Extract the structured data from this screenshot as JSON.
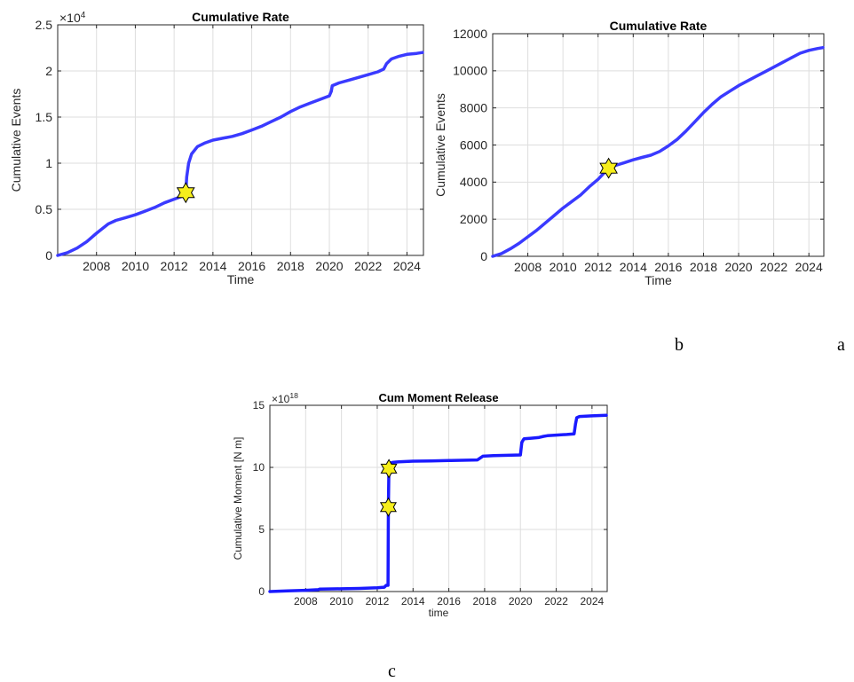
{
  "chart_data": [
    {
      "type": "line",
      "title": "Cumulative Rate",
      "xlabel": "Time",
      "ylabel": "Cumulative Events",
      "exponent_label": "×10^4",
      "exp_base": "×10",
      "exp_pow": "4",
      "xlim": [
        2006.0,
        2024.85
      ],
      "ylim": [
        0,
        2.5
      ],
      "x_ticks": [
        2008,
        2010,
        2012,
        2014,
        2016,
        2018,
        2020,
        2022,
        2024
      ],
      "x_tick_labels": [
        "2008",
        "2010",
        "2012",
        "2014",
        "2016",
        "2018",
        "2020",
        "2022",
        "2024"
      ],
      "y_ticks": [
        0,
        0.5,
        1,
        1.5,
        2,
        2.5
      ],
      "y_tick_labels": [
        "0",
        "0.5",
        "1",
        "1.5",
        "2",
        "2.5"
      ],
      "grid": true,
      "line_color": "#3a3aff",
      "series": [
        {
          "x": [
            2006.0,
            2006.5,
            2007.0,
            2007.5,
            2008.0,
            2008.6,
            2009.0,
            2009.5,
            2010.0,
            2010.5,
            2011.0,
            2011.5,
            2012.0,
            2012.4,
            2012.55,
            2012.6,
            2012.62,
            2012.65,
            2012.75,
            2012.9,
            2013.2,
            2013.6,
            2014.0,
            2014.5,
            2015.0,
            2015.5,
            2016.0,
            2016.5,
            2017.0,
            2017.5,
            2018.0,
            2018.5,
            2019.0,
            2019.5,
            2020.0,
            2020.1,
            2020.15,
            2020.5,
            2021.0,
            2021.5,
            2022.0,
            2022.5,
            2022.8,
            2022.95,
            2023.2,
            2023.6,
            2024.0,
            2024.5,
            2024.8
          ],
          "y": [
            0,
            0.03,
            0.08,
            0.15,
            0.24,
            0.34,
            0.38,
            0.41,
            0.44,
            0.48,
            0.52,
            0.57,
            0.61,
            0.64,
            0.66,
            0.68,
            0.75,
            0.85,
            1.0,
            1.1,
            1.18,
            1.22,
            1.25,
            1.27,
            1.29,
            1.32,
            1.36,
            1.4,
            1.45,
            1.5,
            1.56,
            1.61,
            1.65,
            1.69,
            1.73,
            1.78,
            1.84,
            1.87,
            1.9,
            1.93,
            1.96,
            1.99,
            2.02,
            2.08,
            2.13,
            2.16,
            2.18,
            2.19,
            2.2
          ]
        }
      ],
      "markers": [
        {
          "x": 2012.6,
          "y": 0.68
        }
      ]
    },
    {
      "type": "line",
      "title": "Cumulative Rate",
      "xlabel": "Time",
      "ylabel": "Cumulative Events",
      "xlim": [
        2006.0,
        2024.85
      ],
      "ylim": [
        0,
        12000
      ],
      "x_ticks": [
        2008,
        2010,
        2012,
        2014,
        2016,
        2018,
        2020,
        2022,
        2024
      ],
      "x_tick_labels": [
        "2008",
        "2010",
        "2012",
        "2014",
        "2016",
        "2018",
        "2020",
        "2022",
        "2024"
      ],
      "y_ticks": [
        0,
        2000,
        4000,
        6000,
        8000,
        10000,
        12000
      ],
      "y_tick_labels": [
        "0",
        "2000",
        "4000",
        "6000",
        "8000",
        "10000",
        "12000"
      ],
      "grid": true,
      "line_color": "#3a3aff",
      "series": [
        {
          "x": [
            2006.0,
            2006.5,
            2007.0,
            2007.5,
            2008.0,
            2008.5,
            2009.0,
            2009.5,
            2010.0,
            2010.5,
            2011.0,
            2011.5,
            2012.0,
            2012.6,
            2013.0,
            2013.5,
            2014.0,
            2014.5,
            2015.0,
            2015.5,
            2016.0,
            2016.5,
            2017.0,
            2017.5,
            2018.0,
            2018.5,
            2019.0,
            2019.5,
            2020.0,
            2020.5,
            2021.0,
            2021.5,
            2022.0,
            2022.5,
            2023.0,
            2023.5,
            2024.0,
            2024.5,
            2024.8
          ],
          "y": [
            0,
            150,
            400,
            700,
            1050,
            1400,
            1800,
            2200,
            2600,
            2950,
            3300,
            3750,
            4150,
            4750,
            4900,
            5050,
            5200,
            5330,
            5450,
            5650,
            5950,
            6300,
            6750,
            7250,
            7750,
            8200,
            8600,
            8900,
            9200,
            9450,
            9700,
            9950,
            10200,
            10450,
            10700,
            10950,
            11100,
            11200,
            11250
          ]
        }
      ],
      "markers": [
        {
          "x": 2012.6,
          "y": 4750
        }
      ]
    },
    {
      "type": "line",
      "title": "Cum Moment Release",
      "xlabel": "time",
      "ylabel": "Cumulative Moment [N m]",
      "exponent_label": "×10^18",
      "exp_base": "×10",
      "exp_pow": "18",
      "xlim": [
        2006.0,
        2024.85
      ],
      "ylim": [
        0,
        15
      ],
      "x_ticks": [
        2008,
        2010,
        2012,
        2014,
        2016,
        2018,
        2020,
        2022,
        2024
      ],
      "x_tick_labels": [
        "2008",
        "2010",
        "2012",
        "2014",
        "2016",
        "2018",
        "2020",
        "2022",
        "2024"
      ],
      "y_ticks": [
        0,
        5,
        10,
        15
      ],
      "y_tick_labels": [
        "0",
        "5",
        "10",
        "15"
      ],
      "grid": true,
      "line_color": "#1a1aff",
      "series": [
        {
          "x": [
            2006.0,
            2007.0,
            2008.0,
            2008.7,
            2008.8,
            2010.0,
            2011.0,
            2012.0,
            2012.4,
            2012.5,
            2012.6,
            2012.62,
            2012.65,
            2012.7,
            2012.75,
            2012.85,
            2013.2,
            2014.0,
            2015.0,
            2016.0,
            2017.0,
            2017.6,
            2017.9,
            2018.5,
            2019.5,
            2020.0,
            2020.08,
            2020.15,
            2020.2,
            2020.6,
            2021.0,
            2021.3,
            2021.5,
            2022.0,
            2022.6,
            2023.0,
            2023.08,
            2023.15,
            2023.3,
            2024.0,
            2024.8
          ],
          "y": [
            0,
            0.05,
            0.1,
            0.15,
            0.2,
            0.22,
            0.25,
            0.3,
            0.35,
            0.5,
            0.5,
            6.8,
            9.9,
            10.2,
            10.35,
            10.4,
            10.45,
            10.5,
            10.52,
            10.55,
            10.58,
            10.6,
            10.9,
            10.95,
            10.98,
            11.0,
            12.0,
            12.2,
            12.3,
            12.35,
            12.4,
            12.5,
            12.55,
            12.6,
            12.65,
            12.7,
            13.5,
            14.0,
            14.1,
            14.15,
            14.2
          ]
        }
      ],
      "markers": [
        {
          "x": 2012.62,
          "y": 6.8
        },
        {
          "x": 2012.65,
          "y": 9.9
        }
      ]
    }
  ],
  "captions": {
    "b": "b",
    "a": "a",
    "c": "c"
  },
  "colors": {
    "star_fill": "#f6ee1c",
    "star_stroke": "#000000",
    "grid": "#dedede",
    "axis": "#262626"
  }
}
